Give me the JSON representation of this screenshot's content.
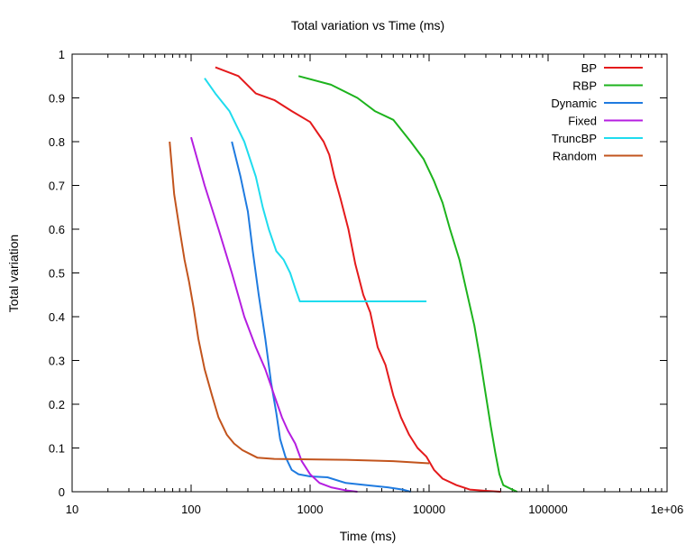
{
  "chart_data": {
    "type": "line",
    "title": "Total variation vs Time (ms)",
    "xlabel": "Time (ms)",
    "ylabel": "Total variation",
    "xscale": "log",
    "xlim": [
      10,
      1000000
    ],
    "ylim": [
      0,
      1
    ],
    "x_ticks": [
      10,
      100,
      1000,
      10000,
      100000,
      1000000
    ],
    "x_tick_labels": [
      "10",
      "100",
      "1000",
      "10000",
      "100000",
      "1e+06"
    ],
    "y_ticks": [
      0,
      0.1,
      0.2,
      0.3,
      0.4,
      0.5,
      0.6,
      0.7,
      0.8,
      0.9,
      1
    ],
    "y_tick_labels": [
      "0",
      "0.1",
      "0.2",
      "0.3",
      "0.4",
      "0.5",
      "0.6",
      "0.7",
      "0.8",
      "0.9",
      "1"
    ],
    "grid": false,
    "legend_position": "top-right",
    "series": [
      {
        "name": "BP",
        "color": "#e41a1c",
        "points": [
          [
            160,
            0.97
          ],
          [
            250,
            0.95
          ],
          [
            350,
            0.91
          ],
          [
            500,
            0.895
          ],
          [
            700,
            0.87
          ],
          [
            1000,
            0.845
          ],
          [
            1300,
            0.8
          ],
          [
            1450,
            0.77
          ],
          [
            1600,
            0.72
          ],
          [
            1800,
            0.67
          ],
          [
            2100,
            0.6
          ],
          [
            2400,
            0.52
          ],
          [
            2800,
            0.45
          ],
          [
            3200,
            0.41
          ],
          [
            3700,
            0.33
          ],
          [
            4300,
            0.29
          ],
          [
            5000,
            0.22
          ],
          [
            5800,
            0.17
          ],
          [
            6800,
            0.13
          ],
          [
            8000,
            0.1
          ],
          [
            9500,
            0.08
          ],
          [
            11000,
            0.05
          ],
          [
            13000,
            0.03
          ],
          [
            17000,
            0.015
          ],
          [
            22000,
            0.005
          ],
          [
            30000,
            0.002
          ],
          [
            40000,
            0.0
          ]
        ]
      },
      {
        "name": "RBP",
        "color": "#1db31d",
        "points": [
          [
            800,
            0.95
          ],
          [
            1500,
            0.93
          ],
          [
            2500,
            0.9
          ],
          [
            3500,
            0.87
          ],
          [
            5000,
            0.85
          ],
          [
            7000,
            0.8
          ],
          [
            9000,
            0.76
          ],
          [
            11000,
            0.71
          ],
          [
            13000,
            0.66
          ],
          [
            15000,
            0.6
          ],
          [
            18000,
            0.53
          ],
          [
            21000,
            0.45
          ],
          [
            24000,
            0.38
          ],
          [
            27000,
            0.3
          ],
          [
            30000,
            0.22
          ],
          [
            33000,
            0.15
          ],
          [
            36000,
            0.09
          ],
          [
            39000,
            0.04
          ],
          [
            42000,
            0.015
          ],
          [
            50000,
            0.005
          ],
          [
            55000,
            0.0
          ]
        ]
      },
      {
        "name": "Dynamic",
        "color": "#1f7be0",
        "points": [
          [
            220,
            0.8
          ],
          [
            260,
            0.72
          ],
          [
            300,
            0.64
          ],
          [
            330,
            0.55
          ],
          [
            370,
            0.45
          ],
          [
            420,
            0.35
          ],
          [
            470,
            0.25
          ],
          [
            520,
            0.18
          ],
          [
            560,
            0.12
          ],
          [
            620,
            0.08
          ],
          [
            700,
            0.05
          ],
          [
            800,
            0.04
          ],
          [
            1000,
            0.035
          ],
          [
            1400,
            0.033
          ],
          [
            2000,
            0.02
          ],
          [
            3000,
            0.015
          ],
          [
            4500,
            0.01
          ],
          [
            6000,
            0.005
          ],
          [
            7000,
            0.0
          ]
        ]
      },
      {
        "name": "Fixed",
        "color": "#b51ee0",
        "points": [
          [
            100,
            0.81
          ],
          [
            130,
            0.7
          ],
          [
            170,
            0.6
          ],
          [
            220,
            0.5
          ],
          [
            280,
            0.4
          ],
          [
            350,
            0.33
          ],
          [
            420,
            0.28
          ],
          [
            500,
            0.22
          ],
          [
            580,
            0.17
          ],
          [
            650,
            0.14
          ],
          [
            750,
            0.11
          ],
          [
            850,
            0.07
          ],
          [
            1000,
            0.04
          ],
          [
            1200,
            0.02
          ],
          [
            1500,
            0.01
          ],
          [
            2000,
            0.003
          ],
          [
            2500,
            0.0
          ]
        ]
      },
      {
        "name": "TruncBP",
        "color": "#1fdcee",
        "points": [
          [
            130,
            0.945
          ],
          [
            160,
            0.91
          ],
          [
            210,
            0.87
          ],
          [
            280,
            0.8
          ],
          [
            350,
            0.72
          ],
          [
            400,
            0.65
          ],
          [
            450,
            0.6
          ],
          [
            520,
            0.55
          ],
          [
            600,
            0.53
          ],
          [
            680,
            0.5
          ],
          [
            760,
            0.46
          ],
          [
            820,
            0.435
          ],
          [
            1500,
            0.435
          ],
          [
            4000,
            0.435
          ],
          [
            9500,
            0.435
          ]
        ]
      },
      {
        "name": "Random",
        "color": "#c2541d",
        "points": [
          [
            66,
            0.8
          ],
          [
            72,
            0.68
          ],
          [
            80,
            0.6
          ],
          [
            88,
            0.53
          ],
          [
            96,
            0.48
          ],
          [
            105,
            0.42
          ],
          [
            115,
            0.35
          ],
          [
            130,
            0.28
          ],
          [
            150,
            0.22
          ],
          [
            170,
            0.17
          ],
          [
            200,
            0.13
          ],
          [
            230,
            0.11
          ],
          [
            270,
            0.095
          ],
          [
            320,
            0.085
          ],
          [
            360,
            0.078
          ],
          [
            500,
            0.075
          ],
          [
            1000,
            0.074
          ],
          [
            2000,
            0.073
          ],
          [
            5000,
            0.07
          ],
          [
            10000,
            0.065
          ]
        ]
      }
    ]
  }
}
